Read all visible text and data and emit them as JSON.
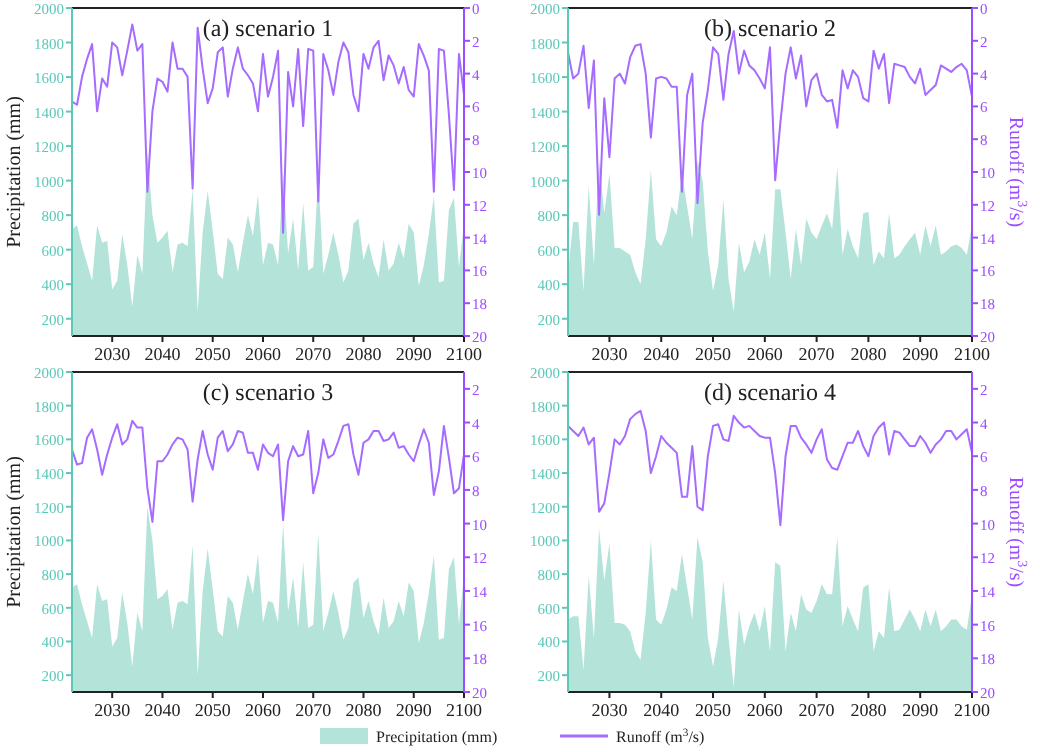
{
  "chart_data": [
    {
      "type": "area",
      "title": "(a) scenario 1",
      "ylabel": "Precipitation (mm)",
      "xlim": [
        2022,
        2100
      ],
      "xticks": [
        2030,
        2040,
        2050,
        2060,
        2070,
        2080,
        2090,
        2100
      ],
      "ylim": [
        100,
        2000
      ],
      "yticks": [
        200,
        400,
        600,
        800,
        1000,
        1200,
        1400,
        1600,
        1800,
        2000
      ],
      "y2lim": [
        20,
        0
      ],
      "y2ticks": [
        0,
        2,
        4,
        6,
        8,
        10,
        12,
        14,
        16,
        18,
        20
      ],
      "x": [
        2022,
        2023,
        2024,
        2025,
        2026,
        2027,
        2028,
        2029,
        2030,
        2031,
        2032,
        2033,
        2034,
        2035,
        2036,
        2037,
        2038,
        2039,
        2040,
        2041,
        2042,
        2043,
        2044,
        2045,
        2046,
        2047,
        2048,
        2049,
        2050,
        2051,
        2052,
        2053,
        2054,
        2055,
        2056,
        2057,
        2058,
        2059,
        2060,
        2061,
        2062,
        2063,
        2064,
        2065,
        2066,
        2067,
        2068,
        2069,
        2070,
        2071,
        2072,
        2073,
        2074,
        2075,
        2076,
        2077,
        2078,
        2079,
        2080,
        2081,
        2082,
        2083,
        2084,
        2085,
        2086,
        2087,
        2088,
        2089,
        2090,
        2091,
        2092,
        2093,
        2094,
        2095,
        2096,
        2097,
        2098,
        2099,
        2100
      ],
      "series": [
        {
          "type": "area",
          "color": "#b3e3d9",
          "values": [
            720,
            740,
            620,
            520,
            420,
            740,
            640,
            650,
            370,
            420,
            690,
            510,
            270,
            570,
            460,
            1170,
            800,
            640,
            670,
            710,
            470,
            630,
            640,
            620,
            950,
            240,
            700,
            940,
            710,
            460,
            430,
            670,
            630,
            470,
            640,
            800,
            680,
            920,
            510,
            640,
            630,
            510,
            1050,
            580,
            780,
            480,
            870,
            480,
            500,
            1040,
            460,
            570,
            700,
            570,
            410,
            480,
            750,
            780,
            540,
            640,
            520,
            440,
            660,
            480,
            520,
            640,
            550,
            750,
            700,
            390,
            510,
            690,
            910,
            410,
            420,
            830,
            900,
            500,
            750
          ]
        },
        {
          "type": "line",
          "axis": "y2",
          "color": "#a66bff",
          "values": [
            5.7,
            5.9,
            4.2,
            3.1,
            2.2,
            6.3,
            4.3,
            4.8,
            2.1,
            2.4,
            4.1,
            2.6,
            1.0,
            2.6,
            2.2,
            11.2,
            6.3,
            4.3,
            4.5,
            5.1,
            2.1,
            3.7,
            3.7,
            4.2,
            11.0,
            1.2,
            3.7,
            5.8,
            4.9,
            2.7,
            2.4,
            5.4,
            3.7,
            2.4,
            3.7,
            4.1,
            4.6,
            6.3,
            2.8,
            5.4,
            4.2,
            2.6,
            13.7,
            3.9,
            6.0,
            2.5,
            7.2,
            2.5,
            2.6,
            11.8,
            2.8,
            3.8,
            5.3,
            3.3,
            2.1,
            2.7,
            5.3,
            6.3,
            2.8,
            3.7,
            2.4,
            2.0,
            4.4,
            2.9,
            3.5,
            4.6,
            3.6,
            5.0,
            5.4,
            2.2,
            2.9,
            3.8,
            11.2,
            2.5,
            2.6,
            6.5,
            11.1,
            2.8,
            5.3
          ]
        }
      ]
    },
    {
      "type": "area",
      "title": "(b) scenario 2",
      "y2label": "Runoff (m$^{3}$/s)",
      "xlim": [
        2022,
        2100
      ],
      "xticks": [
        2030,
        2040,
        2050,
        2060,
        2070,
        2080,
        2090,
        2100
      ],
      "ylim": [
        100,
        2000
      ],
      "yticks": [
        200,
        400,
        600,
        800,
        1000,
        1200,
        1400,
        1600,
        1800,
        2000
      ],
      "y2lim": [
        20,
        0
      ],
      "y2ticks": [
        0,
        2,
        4,
        6,
        8,
        10,
        12,
        14,
        16,
        18,
        20
      ],
      "x": [
        2022,
        2023,
        2024,
        2025,
        2026,
        2027,
        2028,
        2029,
        2030,
        2031,
        2032,
        2033,
        2034,
        2035,
        2036,
        2037,
        2038,
        2039,
        2040,
        2041,
        2042,
        2043,
        2044,
        2045,
        2046,
        2047,
        2048,
        2049,
        2050,
        2051,
        2052,
        2053,
        2054,
        2055,
        2056,
        2057,
        2058,
        2059,
        2060,
        2061,
        2062,
        2063,
        2064,
        2065,
        2066,
        2067,
        2068,
        2069,
        2070,
        2071,
        2072,
        2073,
        2074,
        2075,
        2076,
        2077,
        2078,
        2079,
        2080,
        2081,
        2082,
        2083,
        2084,
        2085,
        2086,
        2087,
        2088,
        2089,
        2090,
        2091,
        2092,
        2093,
        2094,
        2095,
        2096,
        2097,
        2098,
        2099,
        2100
      ],
      "series": [
        {
          "type": "area",
          "color": "#b3e3d9",
          "values": [
            470,
            760,
            760,
            360,
            970,
            510,
            1120,
            810,
            1040,
            610,
            610,
            590,
            570,
            470,
            400,
            660,
            1060,
            660,
            620,
            700,
            850,
            800,
            1040,
            850,
            660,
            1120,
            1000,
            590,
            360,
            510,
            890,
            430,
            240,
            640,
            470,
            530,
            660,
            570,
            700,
            430,
            950,
            950,
            700,
            430,
            720,
            510,
            780,
            700,
            660,
            740,
            810,
            720,
            1080,
            570,
            720,
            620,
            550,
            810,
            820,
            510,
            590,
            550,
            810,
            550,
            570,
            620,
            660,
            700,
            570,
            740,
            620,
            740,
            570,
            590,
            620,
            630,
            610,
            570,
            740
          ]
        },
        {
          "type": "line",
          "axis": "y2",
          "color": "#a66bff",
          "values": [
            2.7,
            4.3,
            4.0,
            2.3,
            6.1,
            3.2,
            12.6,
            5.5,
            9.1,
            4.3,
            4.0,
            4.6,
            3.0,
            2.3,
            2.2,
            4.0,
            7.9,
            4.3,
            4.2,
            4.3,
            4.8,
            4.8,
            11.2,
            5.3,
            4.0,
            11.9,
            7.0,
            5.0,
            2.4,
            2.8,
            5.6,
            2.8,
            1.4,
            4.0,
            2.6,
            3.5,
            3.8,
            4.3,
            4.9,
            2.4,
            10.5,
            7.0,
            4.0,
            2.4,
            4.3,
            2.9,
            6.0,
            4.4,
            4.0,
            5.3,
            5.7,
            5.6,
            7.3,
            3.8,
            4.9,
            3.8,
            4.2,
            5.5,
            5.7,
            2.6,
            3.7,
            2.8,
            5.8,
            3.4,
            3.5,
            3.6,
            4.2,
            4.6,
            3.7,
            5.3,
            5.0,
            4.7,
            3.5,
            3.7,
            3.9,
            3.6,
            3.4,
            3.8,
            5.4
          ]
        }
      ]
    },
    {
      "type": "area",
      "title": "(c) scenario 3",
      "ylabel": "Precipitation (mm)",
      "legend": "bottom",
      "xlim": [
        2022,
        2100
      ],
      "xticks": [
        2030,
        2040,
        2050,
        2060,
        2070,
        2080,
        2090,
        2100
      ],
      "ylim": [
        100,
        2000
      ],
      "yticks": [
        200,
        400,
        600,
        800,
        1000,
        1200,
        1400,
        1600,
        1800,
        2000
      ],
      "y2lim": [
        20,
        1
      ],
      "y2ticks": [
        2,
        4,
        6,
        8,
        10,
        12,
        14,
        16,
        18,
        20
      ],
      "x": [
        2022,
        2023,
        2024,
        2025,
        2026,
        2027,
        2028,
        2029,
        2030,
        2031,
        2032,
        2033,
        2034,
        2035,
        2036,
        2037,
        2038,
        2039,
        2040,
        2041,
        2042,
        2043,
        2044,
        2045,
        2046,
        2047,
        2048,
        2049,
        2050,
        2051,
        2052,
        2053,
        2054,
        2055,
        2056,
        2057,
        2058,
        2059,
        2060,
        2061,
        2062,
        2063,
        2064,
        2065,
        2066,
        2067,
        2068,
        2069,
        2070,
        2071,
        2072,
        2073,
        2074,
        2075,
        2076,
        2077,
        2078,
        2079,
        2080,
        2081,
        2082,
        2083,
        2084,
        2085,
        2086,
        2087,
        2088,
        2089,
        2090,
        2091,
        2092,
        2093,
        2094,
        2095,
        2096,
        2097,
        2098,
        2099,
        2100
      ],
      "series": [
        {
          "type": "area",
          "name": "Precipitation (mm)",
          "color": "#b3e3d9",
          "values": [
            720,
            740,
            620,
            520,
            420,
            740,
            640,
            650,
            370,
            420,
            690,
            510,
            250,
            570,
            460,
            1200,
            1000,
            650,
            670,
            710,
            470,
            630,
            640,
            620,
            970,
            200,
            700,
            950,
            710,
            460,
            430,
            670,
            630,
            470,
            640,
            800,
            680,
            920,
            510,
            640,
            630,
            510,
            1100,
            580,
            780,
            480,
            870,
            480,
            500,
            1040,
            460,
            570,
            700,
            570,
            410,
            480,
            750,
            780,
            540,
            640,
            520,
            440,
            660,
            480,
            520,
            640,
            550,
            750,
            700,
            390,
            510,
            690,
            910,
            410,
            420,
            830,
            900,
            500,
            800
          ]
        },
        {
          "type": "line",
          "axis": "y2",
          "name": "Runoff (m$^{3}$/s)",
          "color": "#a66bff",
          "values": [
            5.6,
            6.5,
            6.4,
            4.9,
            4.4,
            5.6,
            7.1,
            5.9,
            4.9,
            4.1,
            5.3,
            5.0,
            3.9,
            4.3,
            4.3,
            7.9,
            9.9,
            6.3,
            6.3,
            5.9,
            5.3,
            4.9,
            5.0,
            5.6,
            8.7,
            6.2,
            4.5,
            5.9,
            6.8,
            4.9,
            4.5,
            5.7,
            5.3,
            4.5,
            4.6,
            5.8,
            5.8,
            6.8,
            5.3,
            5.8,
            6.0,
            5.3,
            9.8,
            6.3,
            5.4,
            6.0,
            5.9,
            4.5,
            8.2,
            7.0,
            5.0,
            6.1,
            5.9,
            5.1,
            4.2,
            4.1,
            5.9,
            7.1,
            5.2,
            5.0,
            4.5,
            4.5,
            5.1,
            5.0,
            4.6,
            5.5,
            5.4,
            5.9,
            6.3,
            5.3,
            4.4,
            5.2,
            8.3,
            6.9,
            4.2,
            6.1,
            8.2,
            7.9,
            5.9
          ]
        }
      ]
    },
    {
      "type": "area",
      "title": "(d) scenario 4",
      "y2label": "Runoff (m$^{3}$/s)",
      "xlim": [
        2022,
        2100
      ],
      "xticks": [
        2030,
        2040,
        2050,
        2060,
        2070,
        2080,
        2090,
        2100
      ],
      "ylim": [
        100,
        2000
      ],
      "yticks": [
        200,
        400,
        600,
        800,
        1000,
        1200,
        1400,
        1600,
        1800,
        2000
      ],
      "y2lim": [
        20,
        1
      ],
      "y2ticks": [
        2,
        4,
        6,
        8,
        10,
        12,
        14,
        16,
        18,
        20
      ],
      "x": [
        2022,
        2023,
        2024,
        2025,
        2026,
        2027,
        2028,
        2029,
        2030,
        2031,
        2032,
        2033,
        2034,
        2035,
        2036,
        2037,
        2038,
        2039,
        2040,
        2041,
        2042,
        2043,
        2044,
        2045,
        2046,
        2047,
        2048,
        2049,
        2050,
        2051,
        2052,
        2053,
        2054,
        2055,
        2056,
        2057,
        2058,
        2059,
        2060,
        2061,
        2062,
        2063,
        2064,
        2065,
        2066,
        2067,
        2068,
        2069,
        2070,
        2071,
        2072,
        2073,
        2074,
        2075,
        2076,
        2077,
        2078,
        2079,
        2080,
        2081,
        2082,
        2083,
        2084,
        2085,
        2086,
        2087,
        2088,
        2089,
        2090,
        2091,
        2092,
        2093,
        2094,
        2095,
        2096,
        2097,
        2098,
        2099,
        2100
      ],
      "series": [
        {
          "type": "area",
          "color": "#b3e3d9",
          "values": [
            530,
            550,
            550,
            230,
            790,
            420,
            1070,
            760,
            980,
            510,
            510,
            500,
            460,
            340,
            290,
            570,
            1000,
            530,
            500,
            590,
            720,
            700,
            920,
            720,
            530,
            1020,
            870,
            420,
            250,
            420,
            760,
            420,
            130,
            590,
            380,
            490,
            570,
            460,
            610,
            340,
            870,
            850,
            340,
            570,
            460,
            680,
            590,
            570,
            640,
            740,
            680,
            680,
            1020,
            490,
            610,
            530,
            460,
            720,
            740,
            340,
            460,
            420,
            720,
            460,
            470,
            530,
            590,
            530,
            460,
            590,
            490,
            590,
            460,
            490,
            530,
            530,
            490,
            470,
            680
          ]
        },
        {
          "type": "line",
          "axis": "y2",
          "color": "#a66bff",
          "values": [
            4.2,
            4.5,
            4.8,
            4.3,
            5.3,
            4.9,
            9.3,
            8.8,
            7.0,
            5.0,
            5.3,
            4.8,
            3.8,
            3.5,
            3.3,
            4.5,
            7.0,
            6.0,
            4.8,
            5.2,
            5.5,
            5.8,
            8.4,
            8.4,
            5.4,
            9.0,
            9.2,
            6.0,
            4.2,
            4.1,
            5.0,
            5.1,
            3.6,
            4.0,
            4.3,
            4.2,
            4.5,
            4.8,
            4.9,
            4.9,
            7.0,
            10.1,
            6.0,
            4.2,
            4.2,
            4.9,
            5.3,
            5.8,
            5.0,
            4.4,
            6.2,
            6.7,
            6.8,
            6.0,
            5.2,
            5.2,
            4.5,
            5.4,
            6.0,
            4.8,
            4.3,
            4.0,
            5.9,
            4.5,
            4.6,
            5.0,
            5.4,
            5.4,
            4.8,
            5.2,
            5.8,
            5.3,
            5.0,
            4.5,
            4.5,
            5.0,
            4.7,
            4.4,
            5.8
          ]
        }
      ]
    }
  ]
}
